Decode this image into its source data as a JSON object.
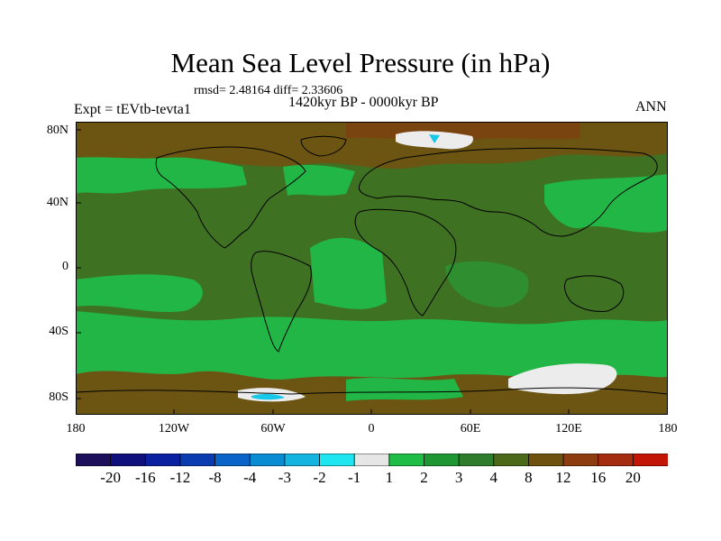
{
  "title": "Mean Sea Level Pressure (in hPa)",
  "stats": "rmsd= 2.48164 diff= 2.33606",
  "subtitle": "1420kyr BP - 0000kyr BP",
  "experiment": "Expt = tEVtb-tevta1",
  "season": "ANN",
  "axes": {
    "lat_labels": [
      "80N",
      "40N",
      "0",
      "40S",
      "80S"
    ],
    "lon_labels": [
      "180",
      "120W",
      "60W",
      "0",
      "60E",
      "120E",
      "180"
    ]
  },
  "colorbar": {
    "labels": [
      "-20",
      "-16",
      "-12",
      "-8",
      "-4",
      "-3",
      "-2",
      "-1",
      "1",
      "2",
      "3",
      "4",
      "8",
      "12",
      "16",
      "20"
    ],
    "colors": [
      "#1e0f5a",
      "#10107d",
      "#0a20a0",
      "#0a3caf",
      "#0a64c8",
      "#0a8cd2",
      "#14b4e1",
      "#1ee6f0",
      "#e6e6e6",
      "#1ebe46",
      "#1e9632",
      "#2d7d2d",
      "#4b6919",
      "#6e500f",
      "#8c3c0f",
      "#a52d0f",
      "#c31405"
    ]
  },
  "field_colors": {
    "land_dark": "#3f7123",
    "ocean_light": "#22b646",
    "mid_green": "#2f8f30",
    "brown": "#6c5512",
    "dark_brown": "#7a4410",
    "white": "#ececec",
    "cyan": "#18c8e8"
  }
}
